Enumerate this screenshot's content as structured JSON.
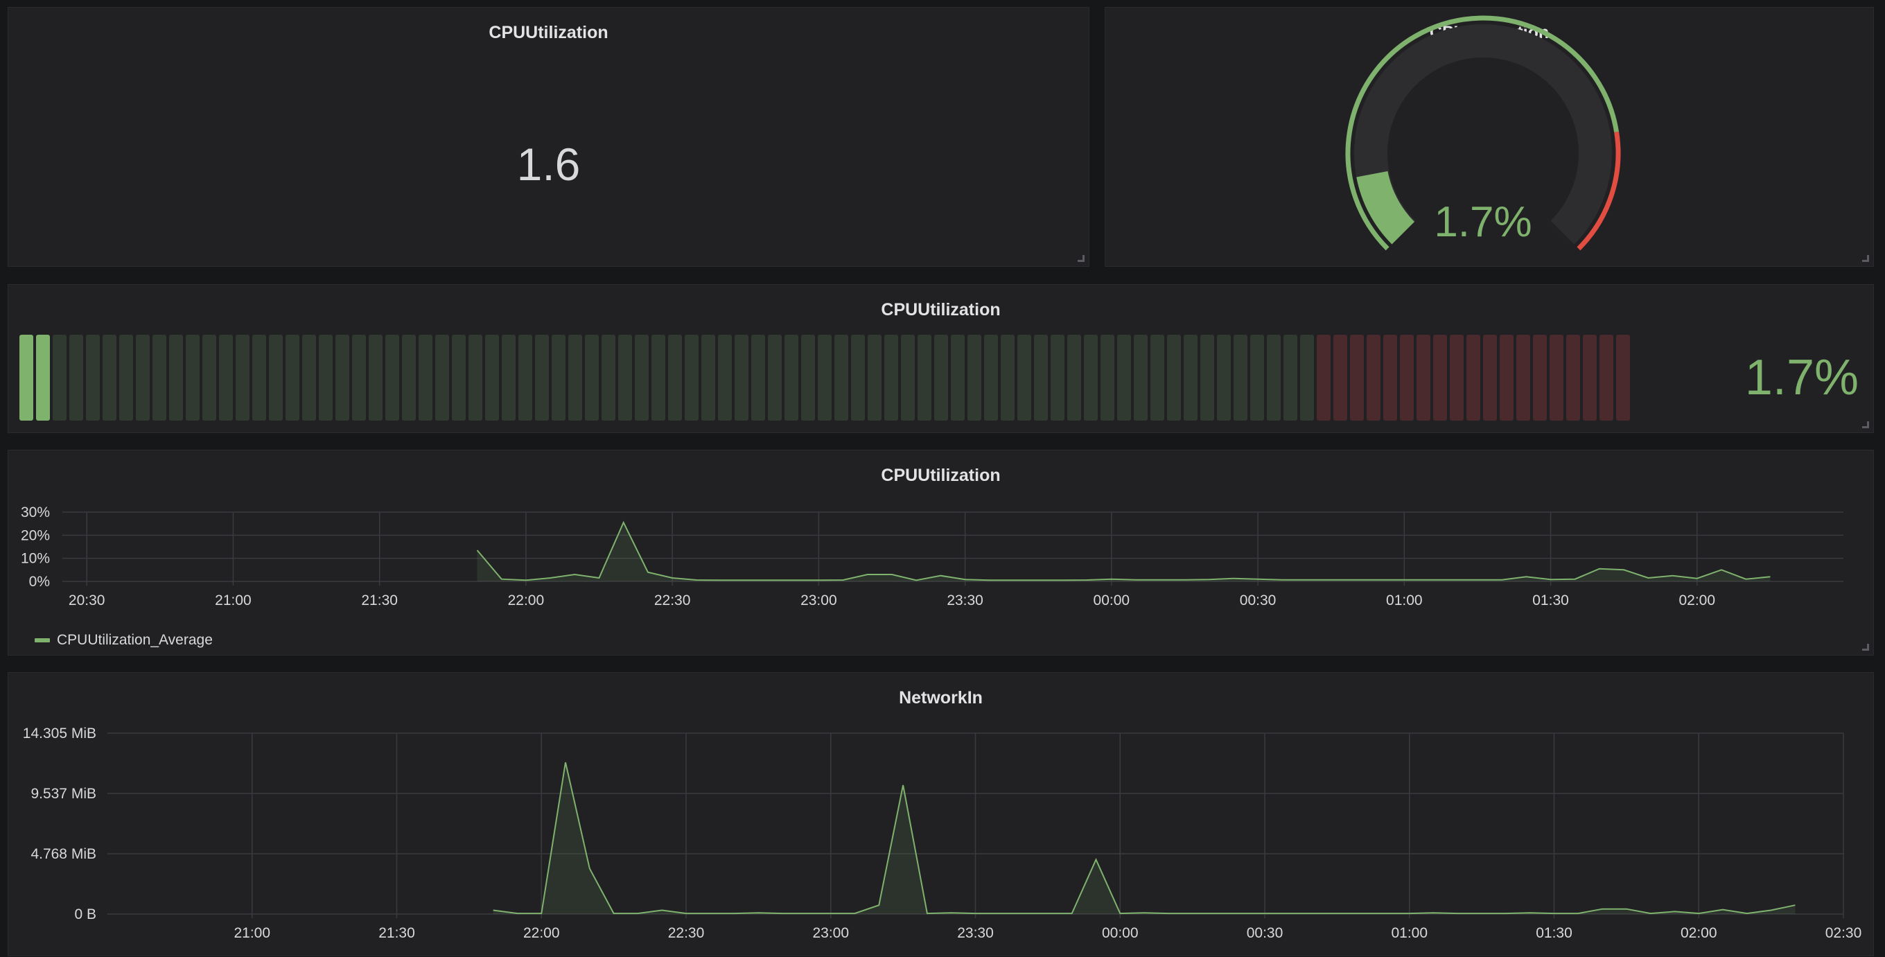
{
  "colors": {
    "background": "#161719",
    "panel": "#212124",
    "green": "#7eb26d",
    "red": "#e24d42",
    "grid": "#3a3b3f",
    "text": "#d8d9da"
  },
  "panels": {
    "singlestat": {
      "title": "CPUUtilization",
      "value": "1.6"
    },
    "gauge": {
      "title": "CPUUtilization",
      "value_text": "1.7%",
      "value": 1.7,
      "min": 0,
      "max": 100,
      "threshold": 80
    },
    "bargauge": {
      "title": "CPUUtilization",
      "value_text": "1.7%",
      "value": 1.7,
      "min": 0,
      "max": 100,
      "threshold": 80
    },
    "cpu_graph": {
      "title": "CPUUtilization",
      "legend": "CPUUtilization_Average"
    },
    "network_graph": {
      "title": "NetworkIn"
    }
  },
  "chart_data": [
    {
      "type": "area",
      "title": "CPUUtilization",
      "x_unit": "time",
      "xlim": [
        "20:25",
        "02:30"
      ],
      "ylim": [
        0,
        30
      ],
      "y_ticks": [
        "0%",
        "10%",
        "20%",
        "30%"
      ],
      "x_ticks": [
        {
          "label": "20:30",
          "t": "20:30"
        },
        {
          "label": "21:00",
          "t": "21:00"
        },
        {
          "label": "21:30",
          "t": "21:30"
        },
        {
          "label": "22:00",
          "t": "22:00"
        },
        {
          "label": "22:30",
          "t": "22:30"
        },
        {
          "label": "23:00",
          "t": "23:00"
        },
        {
          "label": "23:30",
          "t": "23:30"
        },
        {
          "label": "00:00",
          "t": "00:00"
        },
        {
          "label": "00:30",
          "t": "00:30"
        },
        {
          "label": "01:00",
          "t": "01:00"
        },
        {
          "label": "01:30",
          "t": "01:30"
        },
        {
          "label": "02:00",
          "t": "02:00"
        }
      ],
      "grid": true,
      "legend_position": "bottom-left",
      "series": [
        {
          "name": "CPUUtilization_Average",
          "points": [
            [
              "21:50",
              13.5
            ],
            [
              "21:55",
              1
            ],
            [
              "22:00",
              0.5
            ],
            [
              "22:05",
              1.5
            ],
            [
              "22:10",
              3
            ],
            [
              "22:15",
              1.5
            ],
            [
              "22:20",
              25.5
            ],
            [
              "22:25",
              4
            ],
            [
              "22:30",
              1.5
            ],
            [
              "22:35",
              0.6
            ],
            [
              "22:40",
              0.5
            ],
            [
              "22:45",
              0.5
            ],
            [
              "22:50",
              0.5
            ],
            [
              "22:55",
              0.5
            ],
            [
              "23:00",
              0.5
            ],
            [
              "23:05",
              0.6
            ],
            [
              "23:10",
              3
            ],
            [
              "23:15",
              3
            ],
            [
              "23:20",
              0.5
            ],
            [
              "23:25",
              2.5
            ],
            [
              "23:30",
              0.8
            ],
            [
              "23:35",
              0.5
            ],
            [
              "23:40",
              0.5
            ],
            [
              "23:45",
              0.5
            ],
            [
              "23:50",
              0.5
            ],
            [
              "23:55",
              0.6
            ],
            [
              "00:00",
              1
            ],
            [
              "00:05",
              0.7
            ],
            [
              "00:10",
              0.7
            ],
            [
              "00:15",
              0.7
            ],
            [
              "00:20",
              0.8
            ],
            [
              "00:25",
              1.3
            ],
            [
              "00:30",
              1
            ],
            [
              "00:35",
              0.7
            ],
            [
              "00:40",
              0.7
            ],
            [
              "00:45",
              0.7
            ],
            [
              "00:50",
              0.7
            ],
            [
              "00:55",
              0.7
            ],
            [
              "01:00",
              0.7
            ],
            [
              "01:05",
              0.7
            ],
            [
              "01:10",
              0.7
            ],
            [
              "01:15",
              0.7
            ],
            [
              "01:20",
              0.7
            ],
            [
              "01:25",
              2
            ],
            [
              "01:30",
              0.8
            ],
            [
              "01:35",
              1
            ],
            [
              "01:40",
              5.5
            ],
            [
              "01:45",
              5
            ],
            [
              "01:50",
              1.5
            ],
            [
              "01:55",
              2.5
            ],
            [
              "02:00",
              1.3
            ],
            [
              "02:05",
              5
            ],
            [
              "02:10",
              1
            ],
            [
              "02:15",
              2
            ]
          ]
        }
      ]
    },
    {
      "type": "area",
      "title": "NetworkIn",
      "x_unit": "time",
      "xlim": [
        "20:30",
        "02:30"
      ],
      "ylim": [
        0,
        14.305
      ],
      "y_unit": "MiB",
      "y_ticks": [
        "0 B",
        "4.768 MiB",
        "9.537 MiB",
        "14.305 MiB"
      ],
      "x_ticks": [
        {
          "label": "21:00",
          "t": "21:00"
        },
        {
          "label": "21:30",
          "t": "21:30"
        },
        {
          "label": "22:00",
          "t": "22:00"
        },
        {
          "label": "22:30",
          "t": "22:30"
        },
        {
          "label": "23:00",
          "t": "23:00"
        },
        {
          "label": "23:30",
          "t": "23:30"
        },
        {
          "label": "00:00",
          "t": "00:00"
        },
        {
          "label": "00:30",
          "t": "00:30"
        },
        {
          "label": "01:00",
          "t": "01:00"
        },
        {
          "label": "01:30",
          "t": "01:30"
        },
        {
          "label": "02:00",
          "t": "02:00"
        },
        {
          "label": "02:30",
          "t": "02:30"
        }
      ],
      "grid": true,
      "series": [
        {
          "points": [
            [
              "21:50",
              0.3
            ],
            [
              "21:55",
              0.05
            ],
            [
              "22:00",
              0.05
            ],
            [
              "22:05",
              12
            ],
            [
              "22:10",
              3.6
            ],
            [
              "22:15",
              0.05
            ],
            [
              "22:20",
              0.05
            ],
            [
              "22:25",
              0.3
            ],
            [
              "22:30",
              0.05
            ],
            [
              "22:35",
              0.05
            ],
            [
              "22:40",
              0.05
            ],
            [
              "22:45",
              0.1
            ],
            [
              "22:50",
              0.05
            ],
            [
              "22:55",
              0.05
            ],
            [
              "23:00",
              0.05
            ],
            [
              "23:05",
              0.05
            ],
            [
              "23:10",
              0.7
            ],
            [
              "23:15",
              10.2
            ],
            [
              "23:20",
              0.05
            ],
            [
              "23:25",
              0.1
            ],
            [
              "23:30",
              0.05
            ],
            [
              "23:35",
              0.05
            ],
            [
              "23:40",
              0.05
            ],
            [
              "23:45",
              0.05
            ],
            [
              "23:50",
              0.05
            ],
            [
              "23:55",
              4.3
            ],
            [
              "00:00",
              0.05
            ],
            [
              "00:05",
              0.1
            ],
            [
              "00:10",
              0.05
            ],
            [
              "00:15",
              0.05
            ],
            [
              "00:20",
              0.05
            ],
            [
              "00:25",
              0.05
            ],
            [
              "00:30",
              0.05
            ],
            [
              "00:35",
              0.05
            ],
            [
              "00:40",
              0.05
            ],
            [
              "00:45",
              0.05
            ],
            [
              "00:50",
              0.05
            ],
            [
              "00:55",
              0.05
            ],
            [
              "01:00",
              0.05
            ],
            [
              "01:05",
              0.1
            ],
            [
              "01:10",
              0.05
            ],
            [
              "01:15",
              0.05
            ],
            [
              "01:20",
              0.05
            ],
            [
              "01:25",
              0.1
            ],
            [
              "01:30",
              0.05
            ],
            [
              "01:35",
              0.05
            ],
            [
              "01:40",
              0.4
            ],
            [
              "01:45",
              0.4
            ],
            [
              "01:50",
              0.05
            ],
            [
              "01:55",
              0.2
            ],
            [
              "02:00",
              0.05
            ],
            [
              "02:05",
              0.35
            ],
            [
              "02:10",
              0.05
            ],
            [
              "02:15",
              0.3
            ],
            [
              "02:20",
              0.7
            ]
          ]
        }
      ]
    }
  ]
}
